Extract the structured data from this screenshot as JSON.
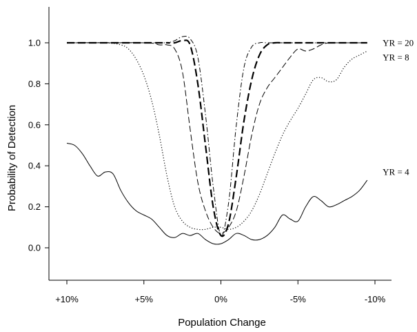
{
  "chart_data": {
    "type": "line",
    "xlabel": "Population Change",
    "ylabel": "Probability of Detection",
    "xlim": [
      10,
      -10
    ],
    "ylim": [
      -0.2,
      1.2
    ],
    "x_ticks": [
      {
        "value": 10,
        "label": "+10%"
      },
      {
        "value": 5,
        "label": "+5%"
      },
      {
        "value": 0,
        "label": "0%"
      },
      {
        "value": -5,
        "label": "-5%"
      },
      {
        "value": -10,
        "label": "-10%"
      }
    ],
    "y_ticks": [
      {
        "value": 0.0,
        "label": "0.0"
      },
      {
        "value": 0.2,
        "label": "0.2"
      },
      {
        "value": 0.4,
        "label": "0.4"
      },
      {
        "value": 0.6,
        "label": "0.6"
      },
      {
        "value": 0.8,
        "label": "0.8"
      },
      {
        "value": 1.0,
        "label": "1.0"
      }
    ],
    "grid": false,
    "legend": "none",
    "annotations": [
      {
        "text": "YR = 20",
        "x": -10.5,
        "y": 1.0
      },
      {
        "text": "YR = 8",
        "x": -10.5,
        "y": 0.93
      },
      {
        "text": "YR = 4",
        "x": -10.5,
        "y": 0.37
      }
    ],
    "series": [
      {
        "style": "solid",
        "color": "#000000",
        "x": [
          10,
          9.5,
          9,
          8.5,
          8,
          7.5,
          7,
          6.5,
          6,
          5.5,
          5,
          4.5,
          4,
          3.5,
          3,
          2.5,
          2,
          1.5,
          1,
          0.5,
          0,
          -0.5,
          -1,
          -1.5,
          -2,
          -2.5,
          -3,
          -3.5,
          -4,
          -4.5,
          -5,
          -5.5,
          -6,
          -6.5,
          -7,
          -7.5,
          -8,
          -8.5,
          -9,
          -9.5
        ],
        "y": [
          0.51,
          0.5,
          0.46,
          0.4,
          0.35,
          0.37,
          0.36,
          0.28,
          0.22,
          0.18,
          0.16,
          0.14,
          0.1,
          0.06,
          0.05,
          0.07,
          0.06,
          0.07,
          0.04,
          0.02,
          0.02,
          0.04,
          0.07,
          0.06,
          0.04,
          0.04,
          0.06,
          0.1,
          0.16,
          0.14,
          0.13,
          0.2,
          0.25,
          0.23,
          0.2,
          0.21,
          0.23,
          0.25,
          0.28,
          0.33
        ]
      },
      {
        "style": "dotted",
        "color": "#000000",
        "x": [
          10,
          7.5,
          6.5,
          6,
          5.5,
          5,
          4.5,
          4,
          3.5,
          3,
          2.5,
          2,
          1.5,
          1,
          0.5,
          0,
          -0.5,
          -1,
          -1.5,
          -2,
          -2.5,
          -3,
          -3.5,
          -4,
          -4.5,
          -5,
          -5.5,
          -6,
          -6.5,
          -7,
          -7.5,
          -8,
          -8.5,
          -9,
          -9.5
        ],
        "y": [
          1.0,
          1.0,
          0.99,
          0.97,
          0.92,
          0.84,
          0.72,
          0.55,
          0.35,
          0.2,
          0.13,
          0.1,
          0.09,
          0.09,
          0.1,
          0.1,
          0.09,
          0.1,
          0.13,
          0.18,
          0.26,
          0.36,
          0.46,
          0.55,
          0.62,
          0.68,
          0.75,
          0.82,
          0.83,
          0.81,
          0.82,
          0.88,
          0.92,
          0.94,
          0.96
        ]
      },
      {
        "style": "dashed-thin",
        "color": "#000000",
        "x": [
          10,
          5,
          4,
          3.5,
          3,
          2.5,
          2,
          1.5,
          1,
          0.5,
          0,
          -0.5,
          -1,
          -1.5,
          -2,
          -2.5,
          -3,
          -3.5,
          -4,
          -4.5,
          -5,
          -5.5,
          -6,
          -6.5,
          -7,
          -7.5,
          -8,
          -8.5,
          -9,
          -9.5
        ],
        "y": [
          1.0,
          1.0,
          0.99,
          0.99,
          0.97,
          0.86,
          0.58,
          0.32,
          0.18,
          0.1,
          0.07,
          0.1,
          0.18,
          0.35,
          0.55,
          0.7,
          0.78,
          0.83,
          0.88,
          0.93,
          0.97,
          0.96,
          0.97,
          0.99,
          1.0,
          1.0,
          1.0,
          1.0,
          1.0,
          1.0
        ]
      },
      {
        "style": "dashed-thick",
        "color": "#000000",
        "x": [
          10,
          4,
          3.5,
          3,
          2.5,
          2,
          1.5,
          1,
          0.5,
          0,
          -0.5,
          -1,
          -1.5,
          -2,
          -2.5,
          -3,
          -3.5,
          -4,
          -5,
          -6,
          -7,
          -8,
          -9,
          -9.5
        ],
        "y": [
          1.0,
          1.0,
          1.0,
          1.0,
          1.01,
          0.99,
          0.8,
          0.5,
          0.2,
          0.06,
          0.12,
          0.35,
          0.62,
          0.82,
          0.94,
          0.99,
          1.0,
          1.0,
          1.0,
          1.0,
          1.0,
          1.0,
          1.0,
          1.0
        ]
      },
      {
        "style": "dashdot",
        "color": "#000000",
        "x": [
          10,
          4,
          3.5,
          3,
          2.5,
          2,
          1.5,
          1,
          0.5,
          0,
          -0.5,
          -1,
          -1.5,
          -2,
          -2.5,
          -3,
          -3.5,
          -4,
          -5,
          -6,
          -7,
          -8,
          -9,
          -9.5
        ],
        "y": [
          1.0,
          1.0,
          1.0,
          1.01,
          1.03,
          1.02,
          0.93,
          0.65,
          0.3,
          0.06,
          0.22,
          0.6,
          0.88,
          0.98,
          1.0,
          1.0,
          1.0,
          1.0,
          1.0,
          1.0,
          1.0,
          1.0,
          1.0,
          1.0
        ]
      }
    ]
  }
}
